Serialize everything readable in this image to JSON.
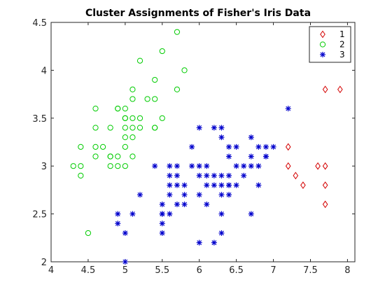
{
  "chart_data": {
    "type": "scatter",
    "title": "Cluster Assignments of Fisher's Iris Data",
    "xlabel": "",
    "ylabel": "",
    "xlim": [
      4,
      8.1
    ],
    "ylim": [
      2,
      4.5
    ],
    "xticks": [
      "4",
      "4.5",
      "5",
      "5.5",
      "6",
      "6.5",
      "7",
      "7.5",
      "8"
    ],
    "yticks": [
      "2",
      "2.5",
      "3",
      "3.5",
      "4",
      "4.5"
    ],
    "grid": false,
    "legend_position": "top-right",
    "series": [
      {
        "name": "1",
        "marker": "diamond",
        "color": "#d40000",
        "points": [
          [
            7.7,
            3.8
          ],
          [
            7.9,
            3.8
          ],
          [
            7.2,
            3.2
          ],
          [
            7.2,
            3.0
          ],
          [
            7.3,
            2.9
          ],
          [
            7.4,
            2.8
          ],
          [
            7.6,
            3.0
          ],
          [
            7.7,
            3.0
          ],
          [
            7.7,
            2.8
          ],
          [
            7.7,
            2.6
          ]
        ]
      },
      {
        "name": "2",
        "marker": "circle",
        "color": "#00cc00",
        "points": [
          [
            5.7,
            4.4
          ],
          [
            5.5,
            4.2
          ],
          [
            5.2,
            4.1
          ],
          [
            5.8,
            4.0
          ],
          [
            5.4,
            3.9
          ],
          [
            5.1,
            3.8
          ],
          [
            5.7,
            3.8
          ],
          [
            5.1,
            3.7
          ],
          [
            5.3,
            3.7
          ],
          [
            5.4,
            3.7
          ],
          [
            4.6,
            3.6
          ],
          [
            5.0,
            3.6
          ],
          [
            4.9,
            3.6
          ],
          [
            4.6,
            3.4
          ],
          [
            4.8,
            3.4
          ],
          [
            5.0,
            3.4
          ],
          [
            5.1,
            3.4
          ],
          [
            5.2,
            3.4
          ],
          [
            5.4,
            3.4
          ],
          [
            4.9,
            3.6
          ],
          [
            5.0,
            3.5
          ],
          [
            5.1,
            3.5
          ],
          [
            5.2,
            3.5
          ],
          [
            5.5,
            3.5
          ],
          [
            4.7,
            3.2
          ],
          [
            4.4,
            3.2
          ],
          [
            4.6,
            3.2
          ],
          [
            5.0,
            3.2
          ],
          [
            5.1,
            3.3
          ],
          [
            5.0,
            3.3
          ],
          [
            4.6,
            3.1
          ],
          [
            4.8,
            3.1
          ],
          [
            4.9,
            3.1
          ],
          [
            5.1,
            3.1
          ],
          [
            4.4,
            3.0
          ],
          [
            4.8,
            3.0
          ],
          [
            4.9,
            3.0
          ],
          [
            5.0,
            3.0
          ],
          [
            4.3,
            3.0
          ],
          [
            4.4,
            2.9
          ],
          [
            4.5,
            2.3
          ],
          [
            5.0,
            3.5
          ],
          [
            5.4,
            3.4
          ],
          [
            4.8,
            3.1
          ]
        ]
      },
      {
        "name": "3",
        "marker": "asterisk",
        "color": "#0000cc",
        "points": [
          [
            7.2,
            3.6
          ],
          [
            6.0,
            3.4
          ],
          [
            6.3,
            3.4
          ],
          [
            6.2,
            3.4
          ],
          [
            6.7,
            3.3
          ],
          [
            6.3,
            3.3
          ],
          [
            5.9,
            3.2
          ],
          [
            6.4,
            3.2
          ],
          [
            6.8,
            3.2
          ],
          [
            6.9,
            3.2
          ],
          [
            7.0,
            3.2
          ],
          [
            6.5,
            3.2
          ],
          [
            6.1,
            3.0
          ],
          [
            5.4,
            3.0
          ],
          [
            5.6,
            3.0
          ],
          [
            5.7,
            3.0
          ],
          [
            5.9,
            3.0
          ],
          [
            6.0,
            3.0
          ],
          [
            6.5,
            3.0
          ],
          [
            6.6,
            3.0
          ],
          [
            6.7,
            3.0
          ],
          [
            6.8,
            3.0
          ],
          [
            6.4,
            3.1
          ],
          [
            6.7,
            3.1
          ],
          [
            6.9,
            3.1
          ],
          [
            6.9,
            3.1
          ],
          [
            6.1,
            2.9
          ],
          [
            6.2,
            2.9
          ],
          [
            6.3,
            2.9
          ],
          [
            6.4,
            2.9
          ],
          [
            6.6,
            2.9
          ],
          [
            5.7,
            2.9
          ],
          [
            6.0,
            2.9
          ],
          [
            5.6,
            2.9
          ],
          [
            6.1,
            2.8
          ],
          [
            6.2,
            2.8
          ],
          [
            6.3,
            2.8
          ],
          [
            6.4,
            2.8
          ],
          [
            6.5,
            2.8
          ],
          [
            6.8,
            2.8
          ],
          [
            5.7,
            2.8
          ],
          [
            5.8,
            2.8
          ],
          [
            5.6,
            2.8
          ],
          [
            6.3,
            2.7
          ],
          [
            5.8,
            2.7
          ],
          [
            6.0,
            2.7
          ],
          [
            5.2,
            2.7
          ],
          [
            5.6,
            2.7
          ],
          [
            6.4,
            2.7
          ],
          [
            5.8,
            2.6
          ],
          [
            5.5,
            2.6
          ],
          [
            5.7,
            2.6
          ],
          [
            6.1,
            2.6
          ],
          [
            4.9,
            2.5
          ],
          [
            5.1,
            2.5
          ],
          [
            5.5,
            2.5
          ],
          [
            5.6,
            2.5
          ],
          [
            6.3,
            2.5
          ],
          [
            6.7,
            2.5
          ],
          [
            4.9,
            2.4
          ],
          [
            5.5,
            2.4
          ],
          [
            5.0,
            2.3
          ],
          [
            5.5,
            2.3
          ],
          [
            6.3,
            2.3
          ],
          [
            6.0,
            2.2
          ],
          [
            6.2,
            2.2
          ],
          [
            5.0,
            2.0
          ],
          [
            5.5,
            2.5
          ],
          [
            6.4,
            2.8
          ]
        ]
      }
    ]
  }
}
